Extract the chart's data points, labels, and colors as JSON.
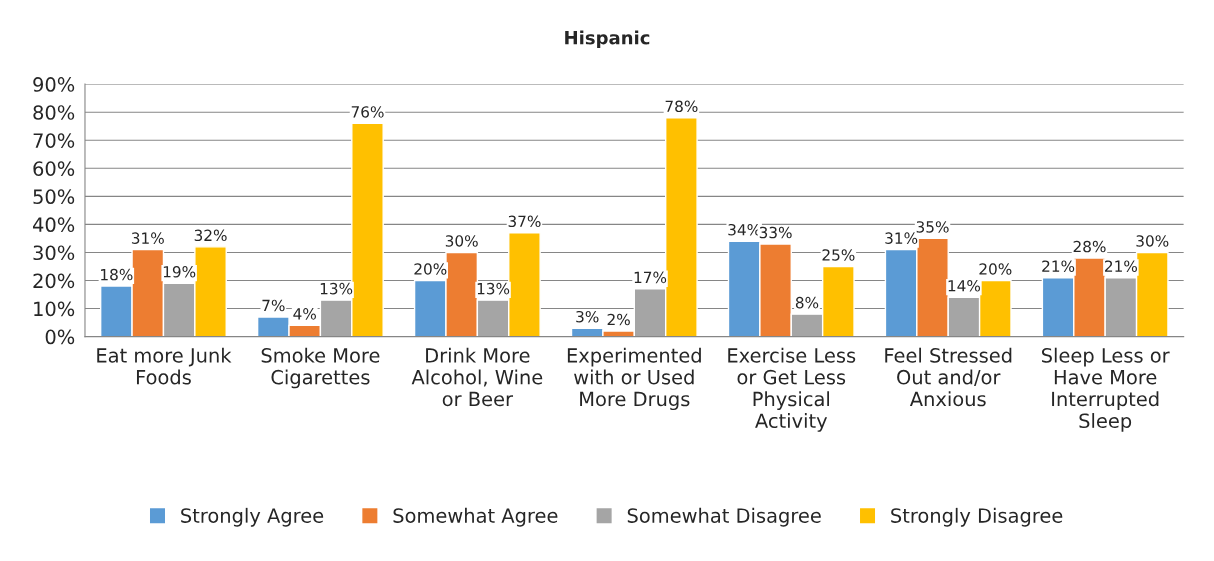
{
  "chart_data": {
    "type": "bar",
    "title": "Hispanic",
    "categories": [
      "Eat more Junk Foods",
      "Smoke More Cigarettes",
      "Drink More Alcohol, Wine or Beer",
      "Experimented with or Used More Drugs",
      "Exercise Less or Get Less Physical Activity",
      "Feel Stressed Out and/or Anxious",
      "Sleep Less or Have More Interrupted Sleep"
    ],
    "series": [
      {
        "name": "Strongly Agree",
        "color": "#5b9bd5",
        "values": [
          18,
          7,
          20,
          3,
          34,
          31,
          21
        ],
        "value_labels": [
          "18%",
          "7%",
          "20%",
          "3%",
          "34%",
          "31%",
          "21%"
        ]
      },
      {
        "name": "Somewhat Agree",
        "color": "#ed7d31",
        "values": [
          31,
          4,
          30,
          2,
          33,
          35,
          28
        ],
        "value_labels": [
          "31%",
          "4%",
          "30%",
          "2%",
          "33%",
          "35%",
          "28%"
        ]
      },
      {
        "name": "Somewhat Disagree",
        "color": "#a5a5a5",
        "values": [
          19,
          13,
          13,
          17,
          8,
          14,
          21
        ],
        "value_labels": [
          "19%",
          "13%",
          "13%",
          "17%",
          "8%",
          "14%",
          "21%"
        ]
      },
      {
        "name": "Strongly Disagree",
        "color": "#ffc000",
        "values": [
          32,
          76,
          37,
          78,
          25,
          20,
          30
        ],
        "value_labels": [
          "32%",
          "76%",
          "37%",
          "78%",
          "25%",
          "20%",
          "30%"
        ]
      }
    ],
    "ylim": [
      0,
      90
    ],
    "yticks": [
      {
        "value": 0,
        "label": "0%"
      },
      {
        "value": 10,
        "label": "10%"
      },
      {
        "value": 20,
        "label": "20%"
      },
      {
        "value": 30,
        "label": "30%"
      },
      {
        "value": 40,
        "label": "40%"
      },
      {
        "value": 50,
        "label": "50%"
      },
      {
        "value": 60,
        "label": "60%"
      },
      {
        "value": 70,
        "label": "70%"
      },
      {
        "value": 80,
        "label": "80%"
      },
      {
        "value": 90,
        "label": "90%"
      }
    ],
    "grid": "y",
    "legend": "bottom"
  }
}
